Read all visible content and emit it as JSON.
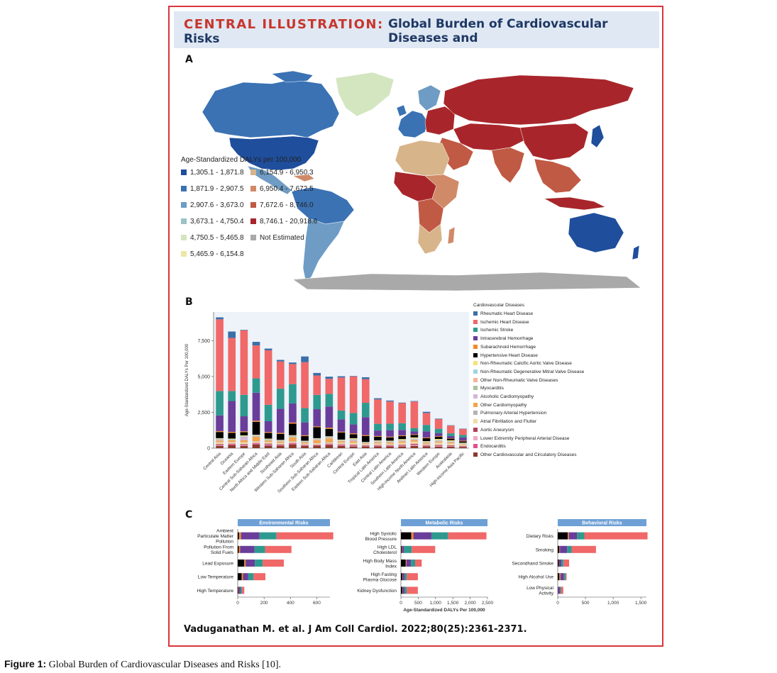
{
  "header": {
    "label": "CENTRAL ILLUSTRATION:",
    "title_line1": "Global Burden of Cardiovascular Diseases and",
    "title_line2": "Risks"
  },
  "panel_a": {
    "letter": "A",
    "legend_title": "Age-Standardized DALYs per 100,000",
    "legend": [
      {
        "label": "1,305.1 - 1,871.8",
        "color": "#1f4e9c"
      },
      {
        "label": "1,871.9 - 2,907.5",
        "color": "#3b72b4"
      },
      {
        "label": "2,907.6 - 3,673.0",
        "color": "#6e9cc4"
      },
      {
        "label": "3,673.1 - 4,750.4",
        "color": "#9cc2c6"
      },
      {
        "label": "4,750.5 - 5,465.8",
        "color": "#d3e6c0"
      },
      {
        "label": "5,465.9 - 6,154.8",
        "color": "#ece7a8"
      },
      {
        "label": "6,154.9 - 6,950.3",
        "color": "#d8b48a"
      },
      {
        "label": "6,950.4 - 7,672.5",
        "color": "#d08a68"
      },
      {
        "label": "7,672.6 - 8,746.0",
        "color": "#c05a44"
      },
      {
        "label": "8,746.1 - 20,918.6",
        "color": "#a8262b"
      },
      {
        "label": "Not Estimated",
        "color": "#a9a9a9"
      }
    ]
  },
  "panel_b": {
    "letter": "B",
    "legend_title": "Cardiovascular Diseases"
  },
  "panel_c": {
    "letter": "C"
  },
  "chart_data": [
    {
      "type": "bar",
      "stacked": true,
      "ylabel": "Age-Standardized DALYs Per 100,000",
      "ylim": [
        0,
        9500
      ],
      "yticks": [
        "0",
        "2,500",
        "5,000",
        "7,500"
      ],
      "categories": [
        "Central Asia",
        "Oceania",
        "Eastern Europe",
        "Central Sub-Saharan Africa",
        "North Africa and Middle East",
        "Southeast Asia",
        "Western Sub-Saharan Africa",
        "South Asia",
        "Southern Sub-Saharan Africa",
        "Eastern Sub-Saharan Africa",
        "Caribbean",
        "Central Europe",
        "East Asia",
        "Tropical Latin America",
        "Central Latin America",
        "Southern Latin America",
        "High-income North America",
        "Andean Latin America",
        "Western Europe",
        "Australasia",
        "High-income Asia Pacific"
      ],
      "series": [
        {
          "name": "Other Cardiovascular and Circulatory Diseases",
          "color": "#8b3a2e",
          "values": [
            160,
            220,
            150,
            260,
            180,
            170,
            260,
            150,
            170,
            220,
            160,
            120,
            120,
            120,
            120,
            120,
            150,
            120,
            110,
            100,
            90
          ]
        },
        {
          "name": "Endocarditis",
          "color": "#e0508a",
          "values": [
            30,
            60,
            20,
            80,
            40,
            40,
            80,
            40,
            40,
            60,
            40,
            20,
            20,
            30,
            30,
            20,
            30,
            40,
            20,
            20,
            15
          ]
        },
        {
          "name": "Lower Extremity Peripheral Arterial Disease",
          "color": "#f0a9c8",
          "values": [
            40,
            20,
            50,
            20,
            40,
            20,
            20,
            20,
            20,
            20,
            30,
            40,
            20,
            30,
            30,
            40,
            60,
            20,
            40,
            40,
            20
          ]
        },
        {
          "name": "Aortic Aneurysm",
          "color": "#b04060",
          "values": [
            60,
            20,
            60,
            20,
            60,
            40,
            20,
            30,
            30,
            20,
            40,
            60,
            40,
            40,
            40,
            60,
            70,
            40,
            60,
            50,
            40
          ]
        },
        {
          "name": "Atrial Fibrillation and Flutter",
          "color": "#f3d9a4",
          "values": [
            120,
            100,
            130,
            80,
            100,
            90,
            70,
            70,
            80,
            70,
            110,
            130,
            80,
            100,
            90,
            130,
            140,
            80,
            150,
            120,
            90
          ]
        },
        {
          "name": "Pulmonary Arterial Hypertension",
          "color": "#b5b5b5",
          "values": [
            20,
            20,
            15,
            30,
            20,
            20,
            30,
            20,
            20,
            30,
            20,
            15,
            15,
            20,
            15,
            15,
            15,
            15,
            15,
            15,
            10
          ]
        },
        {
          "name": "Other Cardiomyopathy",
          "color": "#f2a54a",
          "values": [
            100,
            120,
            120,
            300,
            90,
            80,
            280,
            70,
            200,
            260,
            80,
            100,
            30,
            70,
            70,
            80,
            100,
            60,
            70,
            60,
            30
          ]
        },
        {
          "name": "Alcoholic Cardiomyopathy",
          "color": "#d7b5d8",
          "values": [
            60,
            20,
            220,
            20,
            20,
            20,
            20,
            20,
            40,
            20,
            20,
            80,
            20,
            40,
            30,
            40,
            40,
            20,
            30,
            20,
            10
          ]
        },
        {
          "name": "Myocarditis",
          "color": "#a8c49a",
          "values": [
            40,
            30,
            40,
            60,
            50,
            40,
            60,
            40,
            40,
            60,
            30,
            30,
            30,
            30,
            30,
            20,
            20,
            30,
            20,
            20,
            15
          ]
        },
        {
          "name": "Other Non-Rheumatic Valve Diseases",
          "color": "#f3b39a",
          "values": [
            20,
            20,
            20,
            30,
            20,
            20,
            30,
            20,
            20,
            30,
            20,
            20,
            20,
            20,
            20,
            20,
            20,
            20,
            20,
            20,
            10
          ]
        },
        {
          "name": "Non-Rheumatic Degenerative Mitral Valve Disease",
          "color": "#9fd3e8",
          "values": [
            20,
            20,
            30,
            20,
            20,
            20,
            20,
            20,
            20,
            20,
            20,
            30,
            20,
            20,
            20,
            30,
            40,
            20,
            40,
            30,
            20
          ]
        },
        {
          "name": "Non-Rheumatic Calcific Aortic Valve Disease",
          "color": "#f6e27a",
          "values": [
            30,
            20,
            40,
            20,
            30,
            20,
            20,
            20,
            20,
            20,
            30,
            50,
            20,
            30,
            30,
            60,
            70,
            30,
            70,
            60,
            30
          ]
        },
        {
          "name": "Hypertensive Heart Disease",
          "color": "#000000",
          "values": [
            430,
            400,
            220,
            900,
            400,
            420,
            800,
            320,
            760,
            520,
            500,
            280,
            420,
            250,
            230,
            210,
            170,
            200,
            160,
            110,
            100
          ]
        },
        {
          "name": "Subarachnoid Hemorrhage",
          "color": "#f08a2c",
          "values": [
            60,
            70,
            60,
            80,
            60,
            70,
            80,
            60,
            60,
            80,
            50,
            60,
            60,
            50,
            50,
            50,
            40,
            50,
            40,
            30,
            40
          ]
        },
        {
          "name": "Intracerebral Hemorrhage",
          "color": "#6a3d9a",
          "values": [
            1100,
            2150,
            1050,
            1950,
            750,
            1680,
            1330,
            900,
            1200,
            1480,
            860,
            620,
            1250,
            380,
            450,
            380,
            200,
            430,
            210,
            160,
            230
          ]
        },
        {
          "name": "Ischemic Stroke",
          "color": "#2e9a8f",
          "values": [
            1700,
            700,
            1500,
            1000,
            1150,
            1400,
            1350,
            1000,
            1000,
            880,
            620,
            800,
            1000,
            470,
            450,
            470,
            240,
            450,
            300,
            180,
            170
          ]
        },
        {
          "name": "Ischemic Heart Disease",
          "color": "#f06868",
          "values": [
            5000,
            3700,
            4500,
            2300,
            3800,
            1900,
            1400,
            3200,
            1350,
            1050,
            2300,
            2550,
            1650,
            1700,
            1550,
            1400,
            1850,
            830,
            670,
            540,
            420
          ]
        },
        {
          "name": "Rheumatic Heart Disease",
          "color": "#3a6fa8",
          "values": [
            140,
            450,
            35,
            250,
            120,
            110,
            110,
            400,
            180,
            150,
            90,
            35,
            135,
            85,
            70,
            35,
            35,
            85,
            35,
            25,
            25
          ]
        }
      ]
    },
    {
      "type": "bar",
      "orientation": "horizontal",
      "stacked": true,
      "title": "Environmental Risks",
      "categories": [
        "Ambient Particulate Matter Pollution",
        "Pollution From Solid Fuels",
        "Lead Exposure",
        "Low Temperature",
        "High Temperature"
      ],
      "xlim": [
        0,
        700
      ],
      "xticks": [
        "0",
        "200",
        "400",
        "600"
      ],
      "series_values": [
        [
          10,
          15,
          140,
          130,
          430
        ],
        [
          8,
          10,
          110,
          80,
          200
        ],
        [
          50,
          10,
          70,
          60,
          160
        ],
        [
          30,
          10,
          40,
          40,
          90
        ],
        [
          5,
          3,
          15,
          10,
          17
        ]
      ]
    },
    {
      "type": "bar",
      "orientation": "horizontal",
      "stacked": true,
      "title": "Metabolic Risks",
      "xlabel": "Age-Standardized DALYs Per 100,000",
      "categories": [
        "High Systolic Blood Pressure",
        "High LDL Cholesterol",
        "High Body Mass Index",
        "High Fasting Plasma Glucose",
        "Kidney Dysfunction"
      ],
      "xlim": [
        0,
        2500
      ],
      "xticks": [
        "0",
        "500",
        "1,000",
        "1,500",
        "2,000",
        "2,500"
      ],
      "series_values": [
        [
          300,
          60,
          520,
          480,
          1110
        ],
        [
          20,
          10,
          60,
          220,
          680
        ],
        [
          140,
          20,
          130,
          120,
          190
        ],
        [
          40,
          10,
          60,
          60,
          320
        ],
        [
          40,
          10,
          60,
          60,
          320
        ]
      ]
    },
    {
      "type": "bar",
      "orientation": "horizontal",
      "stacked": true,
      "title": "Behavioral Risks",
      "categories": [
        "Dietary Risks",
        "Smoking",
        "Secondhand Smoke",
        "High Alcohol Use",
        "Low Physical Activity"
      ],
      "xlim": [
        0,
        1600
      ],
      "xticks": [
        "0",
        "500",
        "1,000",
        "1,500"
      ],
      "series_values": [
        [
          180,
          20,
          150,
          130,
          1140
        ],
        [
          30,
          10,
          130,
          80,
          440
        ],
        [
          20,
          5,
          40,
          40,
          100
        ],
        [
          30,
          20,
          60,
          30,
          20
        ],
        [
          5,
          3,
          30,
          20,
          42
        ]
      ]
    }
  ],
  "citation": "Vaduganathan M. et al. J Am Coll Cardiol. 2022;80(25):2361-2371.",
  "caption": {
    "label": "Figure 1:",
    "text": " Global Burden of Cardiovascular Diseases and Risks [10]."
  }
}
